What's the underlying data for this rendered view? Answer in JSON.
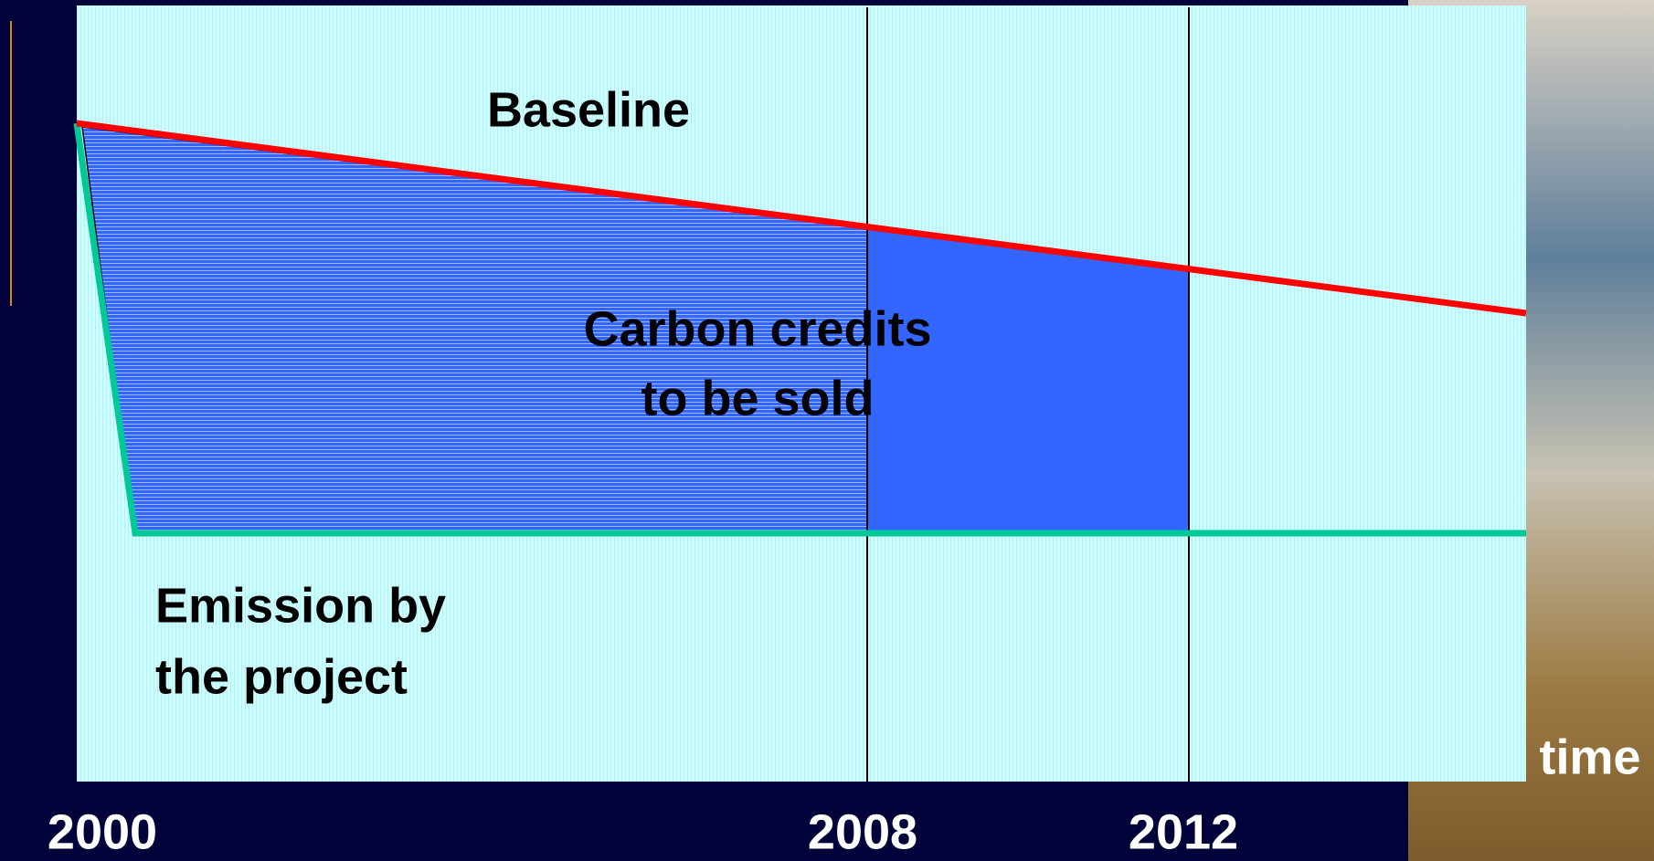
{
  "labels": {
    "baseline": "Baseline",
    "credits": [
      "Carbon credits",
      "to be sold"
    ],
    "emission": [
      "Emission by",
      "the project"
    ],
    "time": "time"
  },
  "years": [
    "2000",
    "2008",
    "2012"
  ]
}
